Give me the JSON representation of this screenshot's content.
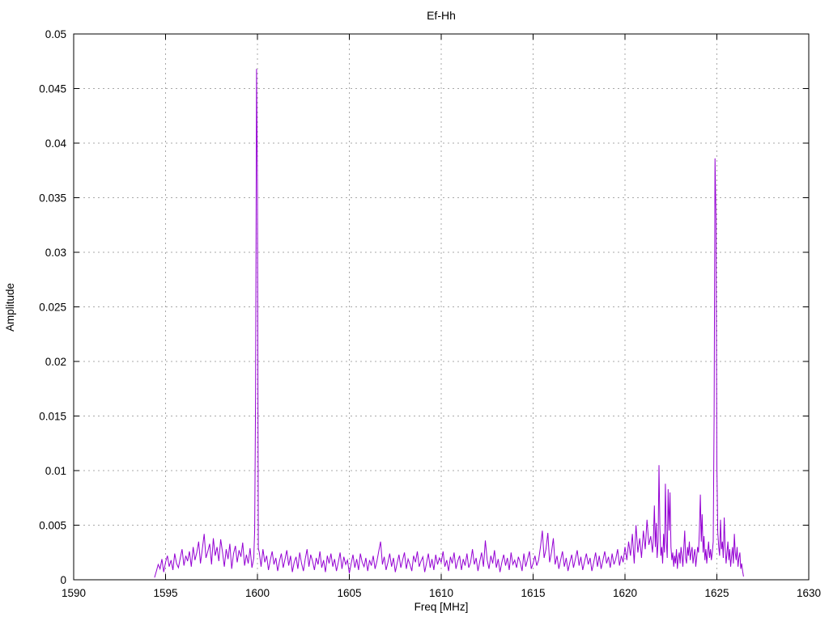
{
  "chart_data": {
    "type": "line",
    "title": "Ef-Hh",
    "xlabel": "Freq [MHz]",
    "ylabel": "Amplitude",
    "xlim": [
      1590,
      1630
    ],
    "ylim": [
      0,
      0.05
    ],
    "grid": true,
    "grid_color": "#a8a8a8",
    "line_color": "#9400d3",
    "border_color": "#000000",
    "legend": "none",
    "x_ticks": [
      {
        "v": 1590,
        "label": "1590"
      },
      {
        "v": 1595,
        "label": "1595"
      },
      {
        "v": 1600,
        "label": "1600"
      },
      {
        "v": 1605,
        "label": "1605"
      },
      {
        "v": 1610,
        "label": "1610"
      },
      {
        "v": 1615,
        "label": "1615"
      },
      {
        "v": 1620,
        "label": "1620"
      },
      {
        "v": 1625,
        "label": "1625"
      },
      {
        "v": 1630,
        "label": "1630"
      }
    ],
    "y_ticks": [
      {
        "v": 0,
        "label": "0"
      },
      {
        "v": 0.005,
        "label": "0.005"
      },
      {
        "v": 0.01,
        "label": "0.01"
      },
      {
        "v": 0.015,
        "label": "0.015"
      },
      {
        "v": 0.02,
        "label": "0.02"
      },
      {
        "v": 0.025,
        "label": "0.025"
      },
      {
        "v": 0.03,
        "label": "0.03"
      },
      {
        "v": 0.035,
        "label": "0.035"
      },
      {
        "v": 0.04,
        "label": "0.04"
      },
      {
        "v": 0.045,
        "label": "0.045"
      },
      {
        "v": 0.05,
        "label": "0.05"
      }
    ],
    "amp_scale": 0.0001,
    "note": "series = segments expanded (f0 + i*df, amps in units of amp_scale) merged with peaks [[freq, amp], ...], sorted by freq; data spans 1594.4 to 1626.45 MHz; main spikes at ~1600 MHz (0.0468) and ~1625 MHz (0.0386)",
    "segments": [
      {
        "f0": 1594.4,
        "df": 0.1,
        "amps": [
          2,
          8,
          14,
          10,
          19,
          7,
          16,
          22,
          12,
          18,
          9,
          24,
          15,
          11,
          20,
          28,
          13,
          22,
          17,
          26,
          12,
          30,
          18,
          25,
          35,
          15,
          28,
          42,
          20,
          26,
          33,
          14,
          38,
          22,
          30,
          17,
          37,
          25,
          12,
          28,
          19,
          33,
          10,
          24,
          31,
          16,
          27,
          21,
          34,
          13,
          23,
          15,
          29,
          11,
          20
        ]
      },
      {
        "f0": 1600.1,
        "df": 0.1,
        "amps": [
          25,
          12,
          28,
          16,
          22,
          9,
          18,
          26,
          14,
          20,
          8,
          17,
          24,
          11,
          19,
          27,
          13,
          22,
          7,
          16,
          21,
          10,
          25,
          15,
          8,
          19,
          28,
          12,
          23,
          17,
          9,
          20,
          14,
          26,
          11,
          18,
          7,
          22,
          15,
          24,
          12,
          19,
          8,
          16,
          25,
          10,
          21,
          14,
          18,
          6,
          15,
          23,
          11,
          19,
          9,
          24,
          16,
          12,
          20,
          8,
          18,
          13,
          22,
          10,
          17,
          26,
          35,
          14,
          21,
          9,
          16,
          24,
          12,
          20,
          7,
          15,
          23,
          11,
          18,
          25,
          10,
          19,
          14,
          8,
          22,
          16,
          26,
          12,
          17,
          21,
          7,
          15,
          24,
          11,
          19,
          9,
          23,
          14,
          20,
          16,
          26,
          12,
          18,
          8,
          21,
          15,
          25,
          10,
          17,
          22,
          9,
          19,
          13,
          24,
          11,
          16,
          28,
          14,
          20,
          8,
          17,
          25,
          12,
          36,
          18,
          10,
          22,
          15,
          27,
          11,
          19,
          7,
          16,
          23,
          13,
          20,
          9,
          25,
          14,
          18,
          11,
          21,
          16,
          8,
          24,
          12,
          19,
          26,
          10,
          15,
          22,
          13,
          18,
          30,
          45,
          20,
          28,
          43,
          16,
          25,
          38,
          14,
          22,
          10,
          18,
          26,
          12,
          20,
          8,
          16,
          23,
          11,
          19,
          27,
          13,
          21,
          9,
          17,
          24,
          14,
          20,
          8,
          16,
          25,
          12,
          22,
          10,
          18,
          26,
          15,
          21,
          11,
          24,
          14,
          19,
          28,
          13,
          22,
          16,
          30,
          18,
          35,
          22,
          42,
          15,
          50,
          25,
          38,
          20,
          45,
          28,
          55,
          32,
          40
        ]
      },
      {
        "f0": 1621.5,
        "df": 0.05,
        "amps": [
          25,
          40,
          68,
          30,
          52,
          20,
          35,
          105,
          48,
          22,
          30,
          15,
          42,
          25,
          88,
          35,
          20,
          83,
          45,
          80,
          30,
          18,
          25,
          12,
          22,
          15,
          28,
          10,
          20,
          25,
          15,
          30,
          22,
          12,
          28,
          45,
          20,
          15,
          30,
          22,
          35,
          18,
          25,
          30,
          15,
          22,
          28,
          12,
          20,
          30,
          25,
          45,
          78,
          35,
          60,
          25,
          40,
          18,
          28,
          15,
          25,
          35,
          20,
          28,
          18,
          25
        ]
      },
      {
        "f0": 1625.1,
        "df": 0.05,
        "amps": [
          30,
          22,
          55,
          28,
          35,
          20,
          57,
          30,
          15,
          25,
          35,
          18,
          28,
          12,
          22,
          30,
          15,
          42,
          25,
          18,
          30,
          12,
          20,
          25,
          10,
          15,
          8,
          3
        ]
      }
    ],
    "peaks": [
      [
        1599.85,
        46
      ],
      [
        1599.9,
        171
      ],
      [
        1599.95,
        468
      ],
      [
        1600.0,
        362
      ],
      [
        1600.05,
        29
      ],
      [
        1624.8,
        35
      ],
      [
        1624.85,
        150
      ],
      [
        1624.9,
        386
      ],
      [
        1624.95,
        331
      ],
      [
        1625.0,
        105
      ],
      [
        1625.05,
        44
      ]
    ]
  }
}
